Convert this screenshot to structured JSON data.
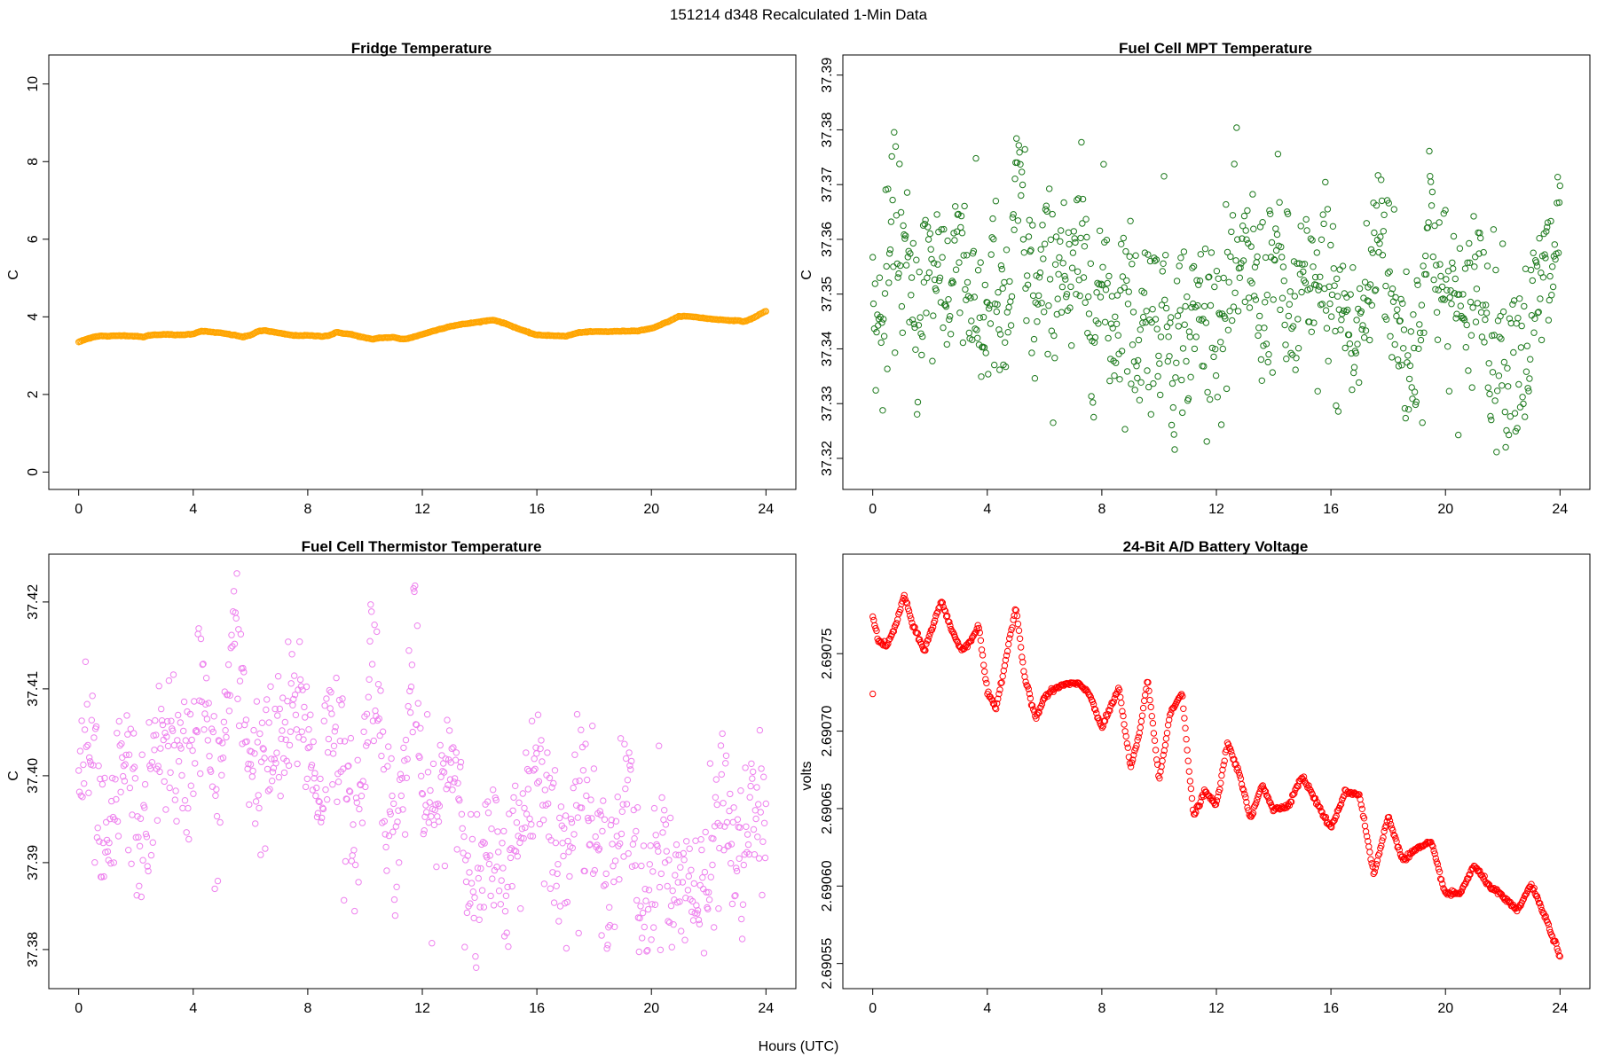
{
  "figure": {
    "suptitle": "151214   d348   Recalculated 1-Min Data",
    "xlabel": "Hours (UTC)"
  },
  "chart_data": [
    {
      "type": "scatter",
      "title": "Fridge Temperature",
      "xlabel": "Hours (UTC)",
      "ylabel": "C",
      "color": "#FFA500",
      "xlim": [
        0,
        24
      ],
      "ylim": [
        0,
        10.3
      ],
      "xticks": [
        0,
        4,
        8,
        12,
        16,
        20,
        24
      ],
      "yticks": [
        0,
        2,
        4,
        6,
        8,
        10
      ],
      "ytick_labels": [
        "0",
        "2",
        "4",
        "6",
        "8",
        "10"
      ],
      "x": [
        0,
        0.25,
        0.5,
        0.75,
        1,
        1.5,
        2,
        2.25,
        2.5,
        3,
        3.5,
        4,
        4.25,
        4.5,
        5,
        5.5,
        5.75,
        6,
        6.25,
        6.5,
        7,
        7.5,
        8,
        8.5,
        8.75,
        9,
        9.5,
        10,
        10.25,
        10.5,
        11,
        11.25,
        11.5,
        12,
        12.5,
        13,
        13.5,
        14,
        14.25,
        14.5,
        15,
        15.5,
        16,
        16.5,
        17,
        17.5,
        18,
        18.5,
        19,
        19.5,
        20,
        20.5,
        21,
        21.5,
        22,
        22.5,
        23,
        23.25,
        23.5,
        23.75,
        24
      ],
      "values": [
        3.35,
        3.42,
        3.48,
        3.51,
        3.5,
        3.52,
        3.5,
        3.48,
        3.53,
        3.55,
        3.53,
        3.56,
        3.63,
        3.62,
        3.58,
        3.52,
        3.48,
        3.53,
        3.62,
        3.65,
        3.58,
        3.52,
        3.52,
        3.5,
        3.52,
        3.6,
        3.55,
        3.46,
        3.42,
        3.46,
        3.47,
        3.43,
        3.44,
        3.55,
        3.66,
        3.76,
        3.82,
        3.87,
        3.9,
        3.92,
        3.8,
        3.65,
        3.53,
        3.52,
        3.5,
        3.6,
        3.62,
        3.62,
        3.63,
        3.64,
        3.7,
        3.85,
        4.02,
        4.0,
        3.95,
        3.92,
        3.9,
        3.88,
        3.95,
        4.05,
        4.15
      ]
    },
    {
      "type": "scatter",
      "title": "Fuel Cell MPT Temperature",
      "xlabel": "Hours (UTC)",
      "ylabel": "C",
      "color": "#1E7A1E",
      "xlim": [
        0,
        24
      ],
      "ylim": [
        37.3175,
        37.3905
      ],
      "xticks": [
        0,
        4,
        8,
        12,
        16,
        20,
        24
      ],
      "yticks": [
        37.32,
        37.33,
        37.34,
        37.35,
        37.36,
        37.37,
        37.38,
        37.39
      ],
      "ytick_labels": [
        "37.32",
        "37.33",
        "37.34",
        "37.35",
        "37.36",
        "37.37",
        "37.38",
        "37.39"
      ],
      "x": [
        0,
        0.3,
        0.6,
        0.9,
        1.2,
        1.5,
        1.8,
        2.1,
        2.4,
        2.7,
        3,
        3.3,
        3.6,
        3.9,
        4.2,
        4.5,
        4.8,
        5.1,
        5.4,
        5.7,
        6,
        6.3,
        6.6,
        6.9,
        7.2,
        7.5,
        7.8,
        8.1,
        8.4,
        8.7,
        9,
        9.3,
        9.6,
        9.9,
        10.2,
        10.5,
        10.8,
        11.1,
        11.4,
        11.7,
        12,
        12.3,
        12.6,
        12.9,
        13.2,
        13.5,
        13.8,
        14.1,
        14.4,
        14.7,
        15,
        15.3,
        15.6,
        15.9,
        16.2,
        16.5,
        16.8,
        17.1,
        17.4,
        17.7,
        18,
        18.3,
        18.6,
        18.9,
        19.2,
        19.5,
        19.8,
        20.1,
        20.4,
        20.7,
        21,
        21.3,
        21.6,
        21.9,
        22.2,
        22.5,
        22.8,
        23.1,
        23.4,
        23.7,
        24
      ],
      "values": [
        37.349,
        37.341,
        37.357,
        37.364,
        37.352,
        37.343,
        37.355,
        37.351,
        37.358,
        37.346,
        37.366,
        37.352,
        37.347,
        37.344,
        37.353,
        37.341,
        37.349,
        37.371,
        37.356,
        37.346,
        37.354,
        37.349,
        37.361,
        37.345,
        37.359,
        37.352,
        37.348,
        37.354,
        37.343,
        37.351,
        37.347,
        37.342,
        37.349,
        37.344,
        37.352,
        37.338,
        37.346,
        37.341,
        37.349,
        37.343,
        37.347,
        37.345,
        37.355,
        37.351,
        37.358,
        37.347,
        37.352,
        37.357,
        37.349,
        37.344,
        37.353,
        37.346,
        37.351,
        37.356,
        37.343,
        37.348,
        37.339,
        37.346,
        37.351,
        37.366,
        37.357,
        37.343,
        37.341,
        37.338,
        37.351,
        37.367,
        37.352,
        37.348,
        37.351,
        37.339,
        37.355,
        37.352,
        37.341,
        37.343,
        37.336,
        37.342,
        37.339,
        37.346,
        37.352,
        37.355,
        37.364
      ]
    },
    {
      "type": "scatter",
      "title": "Fuel Cell Thermistor Temperature",
      "xlabel": "Hours (UTC)",
      "ylabel": "C",
      "color": "#EE82EE",
      "xlim": [
        0,
        24
      ],
      "ylim": [
        37.3775,
        37.4235
      ],
      "xticks": [
        0,
        4,
        8,
        12,
        16,
        20,
        24
      ],
      "yticks": [
        37.38,
        37.39,
        37.4,
        37.41,
        37.42
      ],
      "ytick_labels": [
        "37.38",
        "37.39",
        "37.40",
        "37.41",
        "37.42"
      ],
      "x": [
        0,
        0.3,
        0.6,
        0.9,
        1.2,
        1.5,
        1.8,
        2.1,
        2.4,
        2.7,
        3,
        3.3,
        3.6,
        3.9,
        4.2,
        4.5,
        4.8,
        5.1,
        5.4,
        5.7,
        6,
        6.3,
        6.6,
        6.9,
        7.2,
        7.5,
        7.8,
        8.1,
        8.4,
        8.7,
        9,
        9.3,
        9.6,
        9.9,
        10.2,
        10.5,
        10.8,
        11.1,
        11.4,
        11.7,
        12,
        12.3,
        12.6,
        12.9,
        13.2,
        13.5,
        13.8,
        14.1,
        14.4,
        14.7,
        15,
        15.3,
        15.6,
        15.9,
        16.2,
        16.5,
        16.8,
        17.1,
        17.4,
        17.7,
        18,
        18.3,
        18.6,
        18.9,
        19.2,
        19.5,
        19.8,
        20.1,
        20.4,
        20.7,
        21,
        21.3,
        21.6,
        21.9,
        22.2,
        22.5,
        22.8,
        23.1,
        23.4,
        23.7,
        24
      ],
      "values": [
        37.401,
        37.403,
        37.398,
        37.389,
        37.393,
        37.402,
        37.399,
        37.393,
        37.395,
        37.401,
        37.405,
        37.404,
        37.399,
        37.402,
        37.411,
        37.406,
        37.395,
        37.405,
        37.417,
        37.409,
        37.402,
        37.401,
        37.401,
        37.403,
        37.404,
        37.407,
        37.409,
        37.402,
        37.398,
        37.404,
        37.408,
        37.396,
        37.394,
        37.397,
        37.415,
        37.408,
        37.396,
        37.392,
        37.401,
        37.415,
        37.397,
        37.394,
        37.396,
        37.403,
        37.401,
        37.394,
        37.384,
        37.388,
        37.391,
        37.389,
        37.388,
        37.393,
        37.397,
        37.401,
        37.402,
        37.393,
        37.389,
        37.394,
        37.399,
        37.398,
        37.393,
        37.389,
        37.391,
        37.394,
        37.398,
        37.388,
        37.384,
        37.391,
        37.394,
        37.385,
        37.387,
        37.388,
        37.386,
        37.385,
        37.393,
        37.398,
        37.392,
        37.389,
        37.394,
        37.396,
        37.393
      ]
    },
    {
      "type": "scatter",
      "title": "24-Bit A/D Battery Voltage",
      "xlabel": "Hours (UTC)",
      "ylabel": "volts",
      "color": "#FF0000",
      "xlim": [
        0,
        24
      ],
      "ylim": [
        2.690545,
        2.690803
      ],
      "xticks": [
        0,
        4,
        8,
        12,
        16,
        20,
        24
      ],
      "yticks": [
        2.69055,
        2.6906,
        2.69065,
        2.6907,
        2.69075
      ],
      "ytick_labels": [
        "2.69055",
        "2.69060",
        "2.69065",
        "2.69070",
        "2.69075"
      ],
      "x": [
        0,
        0.2,
        0.5,
        0.8,
        1.1,
        1.4,
        1.8,
        2.1,
        2.4,
        2.7,
        3.1,
        3.4,
        3.7,
        4.0,
        4.3,
        4.6,
        5.0,
        5.3,
        5.7,
        6.0,
        6.5,
        7.0,
        7.3,
        7.6,
        8.0,
        8.3,
        8.6,
        9.0,
        9.3,
        9.6,
        10.0,
        10.4,
        10.8,
        11.2,
        11.6,
        12.0,
        12.4,
        12.8,
        13.2,
        13.6,
        14.0,
        14.5,
        15.0,
        15.5,
        16.0,
        16.5,
        17.0,
        17.5,
        18.0,
        18.5,
        19.0,
        19.5,
        20.0,
        20.5,
        21.0,
        21.5,
        22.0,
        22.5,
        23.0,
        23.5,
        24.0
      ],
      "values": [
        2.690775,
        2.690758,
        2.690755,
        2.690768,
        2.690788,
        2.690768,
        2.690752,
        2.690768,
        2.690784,
        2.690768,
        2.690752,
        2.690758,
        2.690768,
        2.690725,
        2.690714,
        2.690742,
        2.690781,
        2.690735,
        2.690708,
        2.690722,
        2.690729,
        2.690731,
        2.690729,
        2.690723,
        2.690702,
        2.690715,
        2.690728,
        2.690676,
        2.690697,
        2.690734,
        2.690668,
        2.690713,
        2.690724,
        2.690645,
        2.690661,
        2.690652,
        2.690693,
        2.690672,
        2.690643,
        2.690666,
        2.690649,
        2.690652,
        2.690671,
        2.690654,
        2.690637,
        2.690661,
        2.690659,
        2.690607,
        2.690645,
        2.690617,
        2.690624,
        2.690628,
        2.690595,
        2.690595,
        2.690613,
        2.690601,
        2.690593,
        2.690584,
        2.690601,
        2.690579,
        2.690555
      ]
    }
  ]
}
